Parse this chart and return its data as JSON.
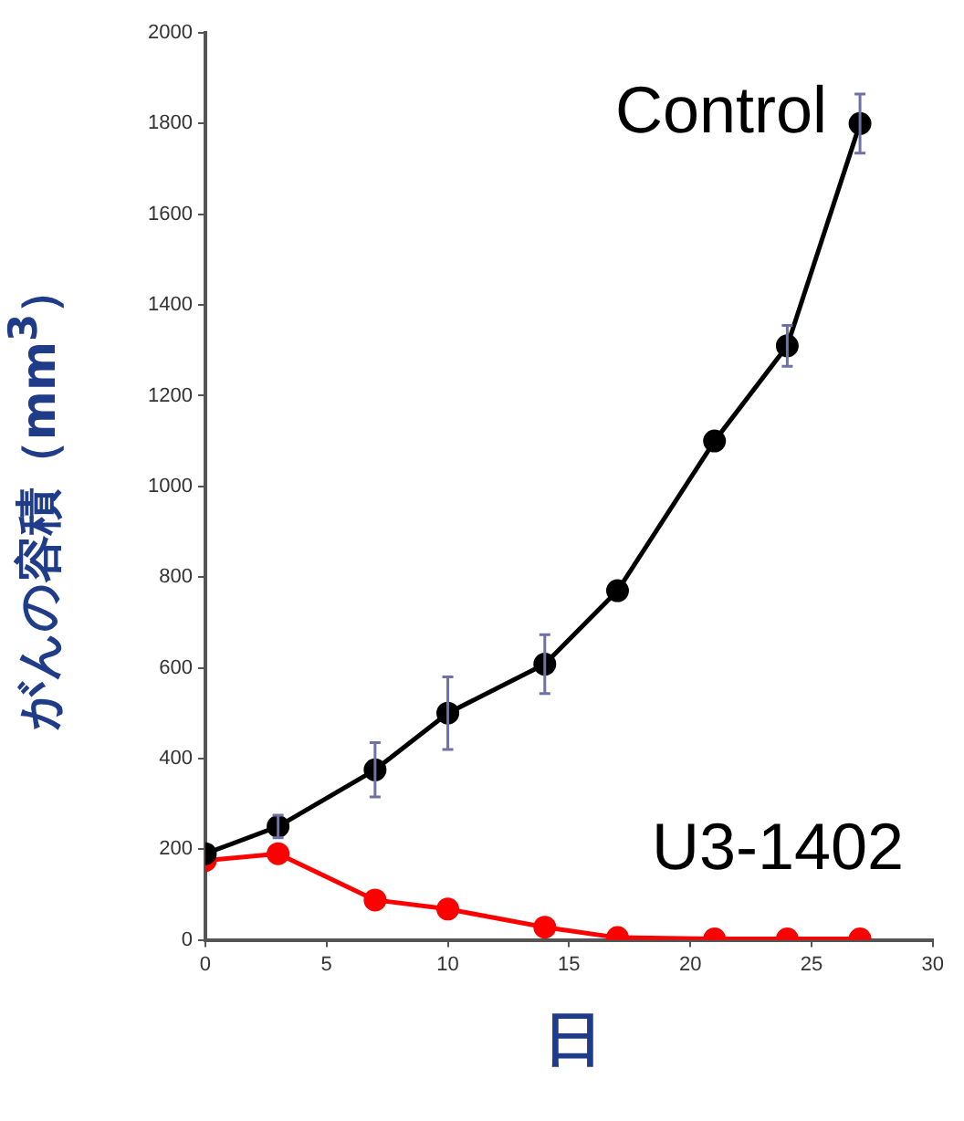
{
  "chart_data": {
    "type": "line",
    "xlabel": "日",
    "ylabel": "がんの容積（mm$^{3}$）",
    "x": [
      0,
      3,
      7,
      10,
      14,
      17,
      21,
      24,
      27
    ],
    "series": [
      {
        "name": "Control",
        "color": "#000000",
        "values": [
          190,
          250,
          375,
          500,
          608,
          770,
          1100,
          1310,
          1800
        ],
        "errors": [
          null,
          25,
          60,
          80,
          65,
          null,
          null,
          45,
          65
        ]
      },
      {
        "name": "U3-1402",
        "color": "#ff0000",
        "values": [
          175,
          190,
          88,
          68,
          28,
          5,
          2,
          2,
          2
        ]
      }
    ],
    "xlim": [
      0,
      30
    ],
    "xticks": [
      0,
      5,
      10,
      15,
      20,
      25,
      30
    ],
    "ylim": [
      0,
      2000
    ],
    "yticks": [
      0,
      200,
      400,
      600,
      800,
      1000,
      1200,
      1400,
      1600,
      1800,
      2000
    ],
    "grid": false,
    "legend": false,
    "marker": "circle",
    "line_style": "solid"
  }
}
